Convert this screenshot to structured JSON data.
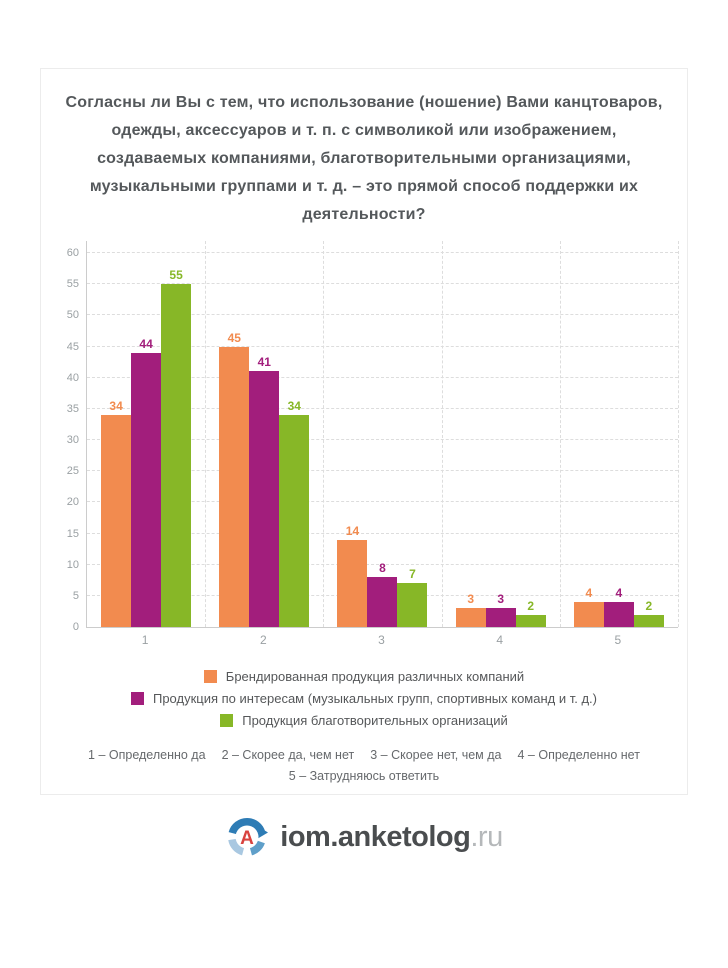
{
  "title": "Согласны ли Вы с тем, что использование (ношение) Вами канцтоваров, одежды, аксессуаров и т. п. с символикой или изображением, создаваемых компаниями, благотворительными организациями, музыкальными группами и т. д. – это прямой способ поддержки их деятельности?",
  "chart_data": {
    "type": "bar",
    "categories": [
      "1",
      "2",
      "3",
      "4",
      "5"
    ],
    "series": [
      {
        "name": "Брендированная продукция различных компаний",
        "color": "#f28b4f",
        "values": [
          34,
          45,
          14,
          3,
          4
        ]
      },
      {
        "name": "Продукция по интересам (музыкальных групп, спортивных команд и т. д.)",
        "color": "#a21e7c",
        "values": [
          44,
          41,
          8,
          3,
          4
        ]
      },
      {
        "name": "Продукция благотворительных организаций",
        "color": "#87b727",
        "values": [
          55,
          34,
          7,
          2,
          2
        ]
      }
    ],
    "title": "",
    "xlabel": "",
    "ylabel": "",
    "ylim": [
      0,
      60
    ],
    "yticks": [
      0,
      5,
      10,
      15,
      20,
      25,
      30,
      35,
      40,
      45,
      50,
      55,
      60
    ],
    "grid": true,
    "grid_style": "dashed",
    "legend_position": "bottom",
    "bar_value_labels": true
  },
  "footnotes": {
    "line1": [
      "1 – Определенно да",
      "2 – Скорее да, чем нет",
      "3 – Скорее нет, чем да",
      "4 – Определенно нет"
    ],
    "line2": "5 – Затрудняюсь ответить"
  },
  "logo": {
    "text_main": "iom.anketolog",
    "text_suffix": ".ru",
    "letter": "A",
    "colors": {
      "main_text": "#4a4d4f",
      "suffix_text": "#b5b8ba",
      "letter": "#d8433f",
      "arc_dark": "#2e7cb5",
      "arc_medium": "#5f9fc9",
      "arc_light": "#a9c8e1"
    }
  },
  "style_colors": {
    "axis": "#cccccc",
    "gridline": "#dddddd",
    "tick_text": "#9aa0a3",
    "title_text": "#54585b",
    "card_border": "#ececec"
  }
}
